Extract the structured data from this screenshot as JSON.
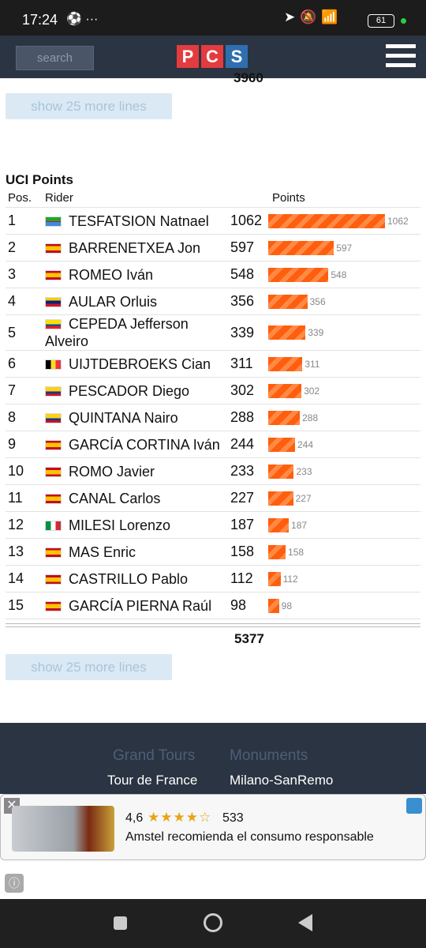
{
  "status": {
    "time": "17:24",
    "battery": "61"
  },
  "header": {
    "search": "search",
    "logo": [
      "P",
      "C",
      "S"
    ]
  },
  "previous_total": "3960",
  "show_more_top": "show 25 more lines",
  "uci": {
    "title": "UCI Points",
    "columns": [
      "Pos.",
      "Rider",
      "Points"
    ],
    "rows": [
      {
        "pos": 1,
        "rider": "TESFATSION Natnael",
        "points": 1062
      },
      {
        "pos": 2,
        "rider": "BARRENETXEA Jon",
        "points": 597
      },
      {
        "pos": 3,
        "rider": "ROMEO Iván",
        "points": 548
      },
      {
        "pos": 4,
        "rider": "AULAR Orluis",
        "points": 356
      },
      {
        "pos": 5,
        "rider": "CEPEDA Jefferson Alveiro",
        "points": 339
      },
      {
        "pos": 6,
        "rider": "UIJTDEBROEKS Cian",
        "points": 311
      },
      {
        "pos": 7,
        "rider": "PESCADOR Diego",
        "points": 302
      },
      {
        "pos": 8,
        "rider": "QUINTANA Nairo",
        "points": 288
      },
      {
        "pos": 9,
        "rider": "GARCÍA CORTINA Iván",
        "points": 244
      },
      {
        "pos": 10,
        "rider": "ROMO Javier",
        "points": 233
      },
      {
        "pos": 11,
        "rider": "CANAL Carlos",
        "points": 227
      },
      {
        "pos": 12,
        "rider": "MILESI Lorenzo",
        "points": 187
      },
      {
        "pos": 13,
        "rider": "MAS Enric",
        "points": 158
      },
      {
        "pos": 14,
        "rider": "CASTRILLO Pablo",
        "points": 112
      },
      {
        "pos": 15,
        "rider": "GARCÍA PIERNA Raúl",
        "points": 98
      }
    ],
    "total": 5377,
    "show_more": "show 25 more lines"
  },
  "footer": {
    "columns": [
      {
        "heading": "Grand Tours",
        "link": "Tour de France"
      },
      {
        "heading": "Monuments",
        "link": "Milano-SanRemo"
      }
    ]
  },
  "ad": {
    "rating": "4,6",
    "reviews": "533",
    "text": "Amstel recomienda el consumo responsable"
  }
}
